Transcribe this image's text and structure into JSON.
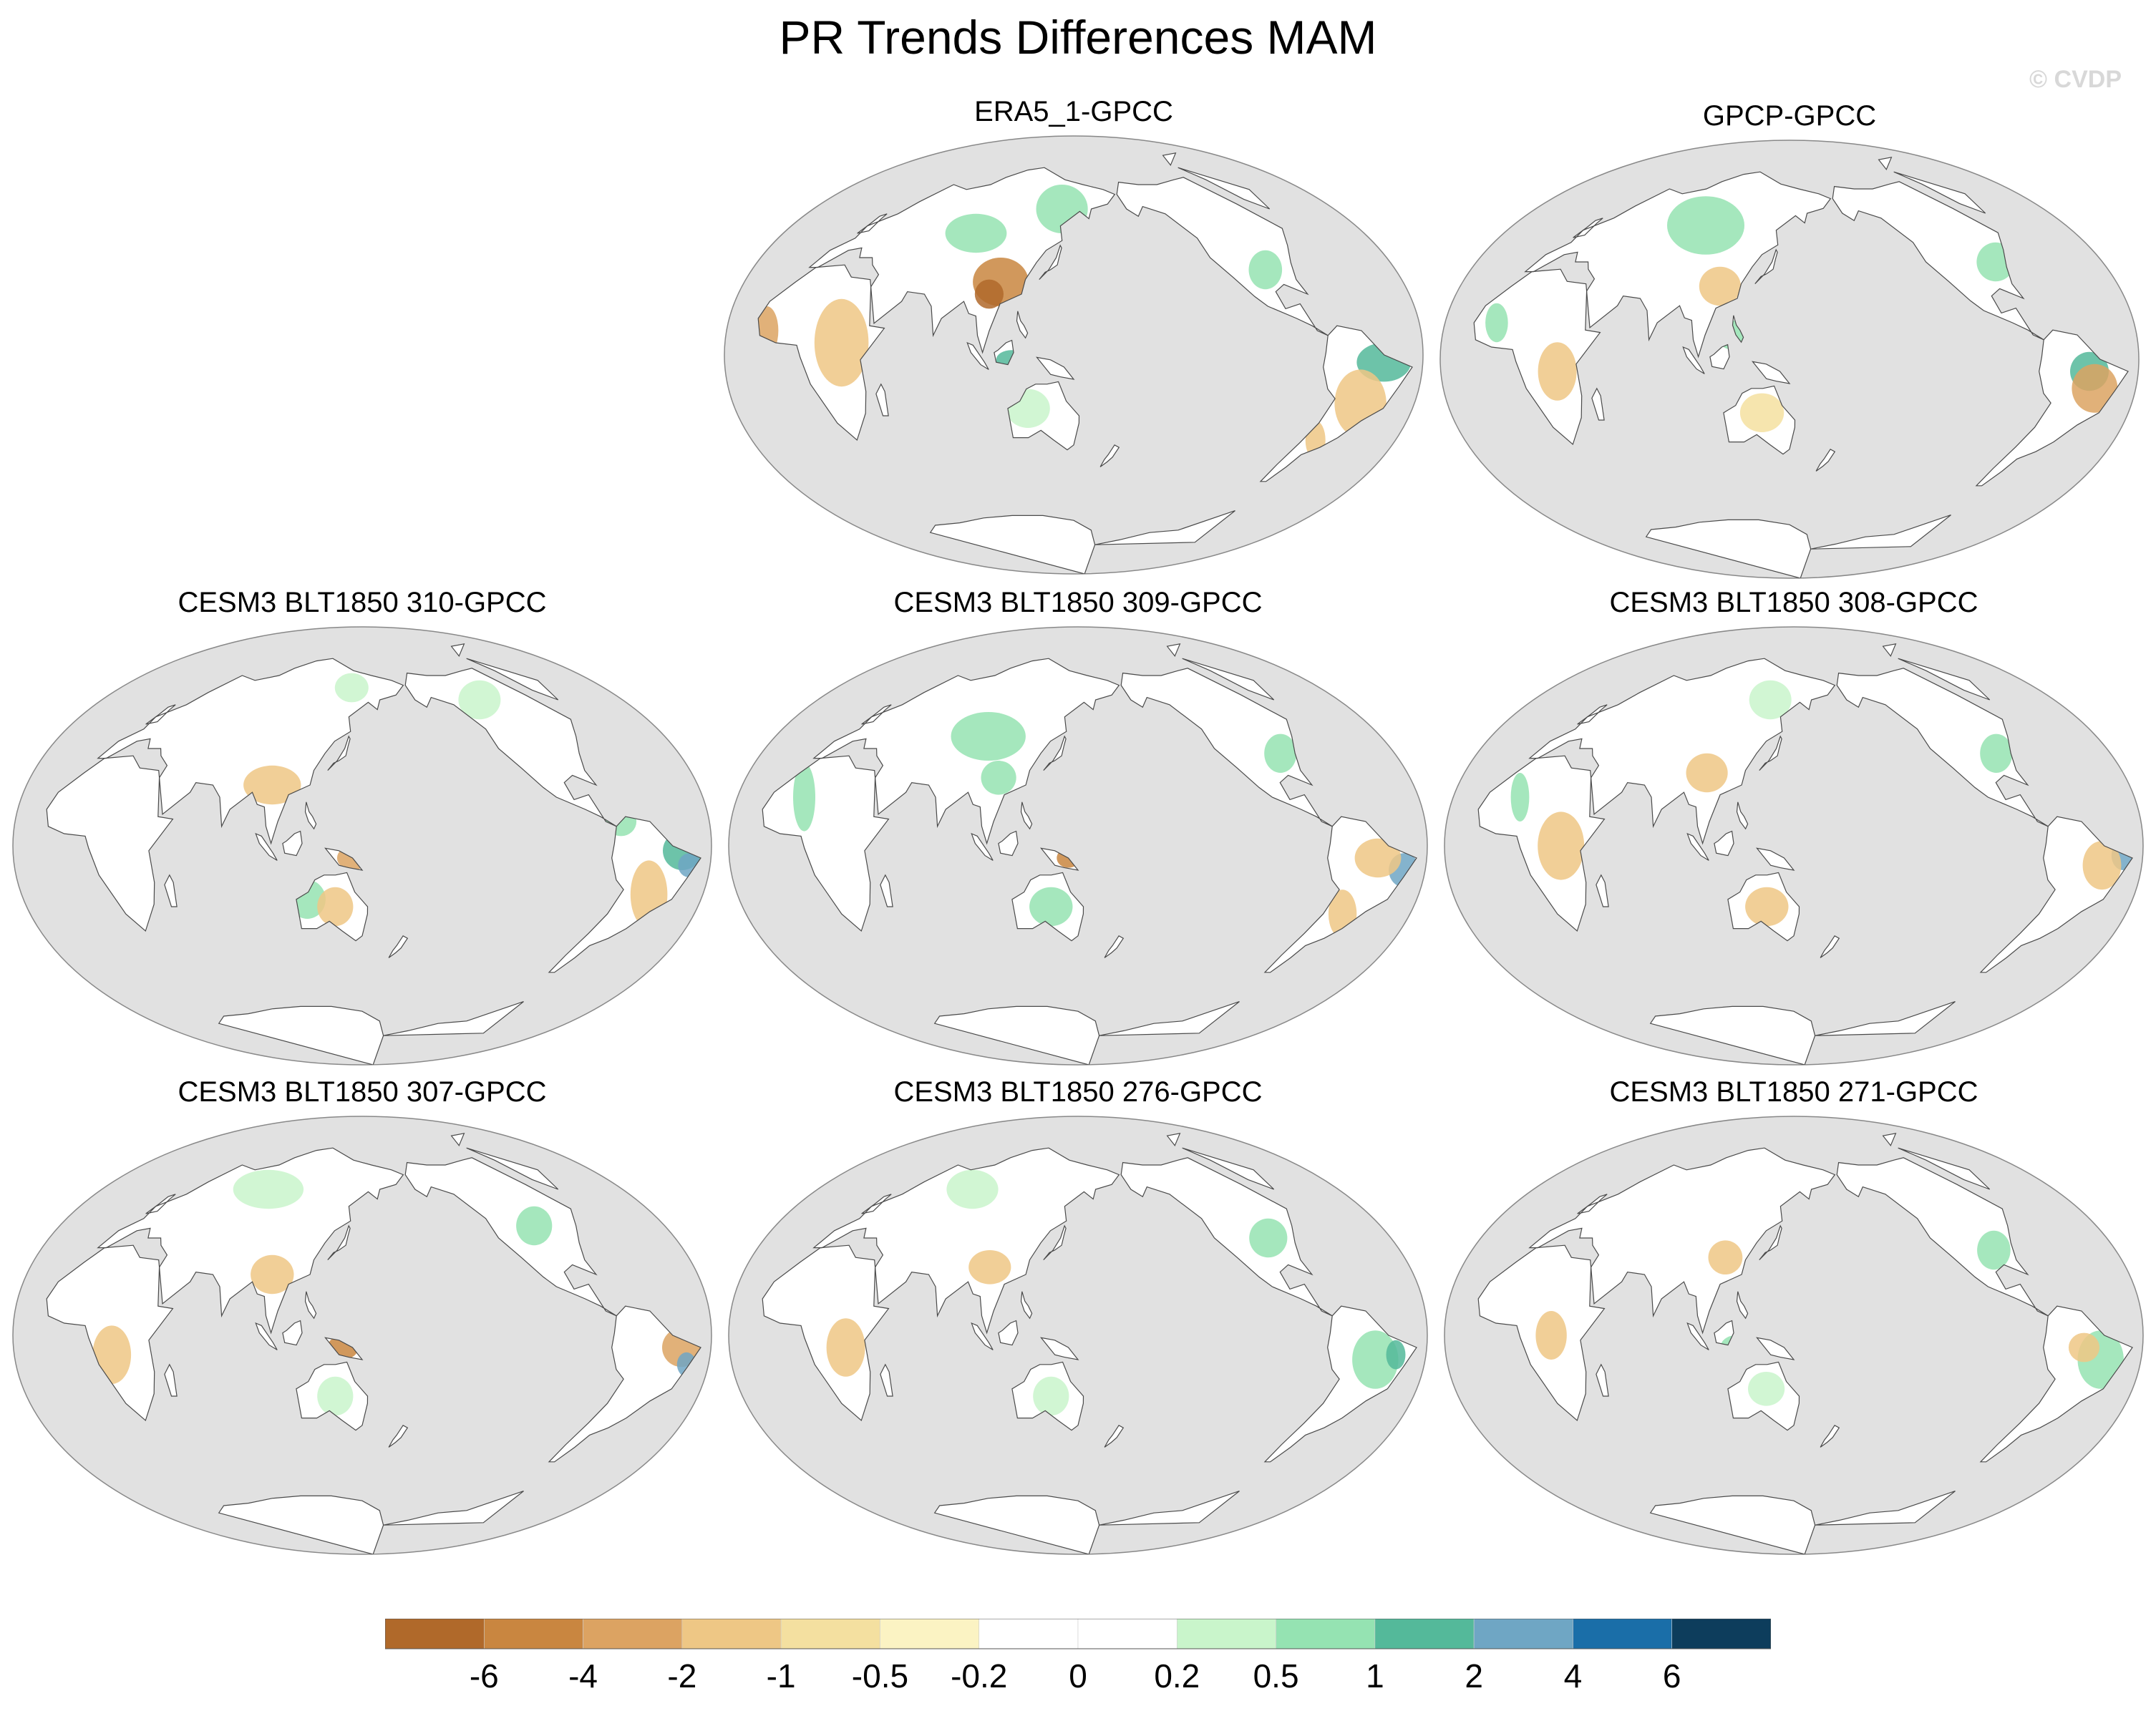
{
  "figure": {
    "title": "PR Trends Differences MAM",
    "credit": "© CVDP"
  },
  "panels": [
    {
      "title": "ERA5_1-GPCC"
    },
    {
      "title": "GPCP-GPCC"
    },
    {
      "title": "CESM3 BLT1850 310-GPCC"
    },
    {
      "title": "CESM3 BLT1850 309-GPCC"
    },
    {
      "title": "CESM3 BLT1850 308-GPCC"
    },
    {
      "title": "CESM3 BLT1850 307-GPCC"
    },
    {
      "title": "CESM3 BLT1850 276-GPCC"
    },
    {
      "title": "CESM3 BLT1850 271-GPCC"
    }
  ],
  "colorbar": {
    "labels": [
      "-6",
      "-4",
      "-2",
      "-1",
      "-0.5",
      "-0.2",
      "0",
      "0.2",
      "0.5",
      "1",
      "2",
      "4",
      "6"
    ],
    "colors": [
      "#b0692a",
      "#c98640",
      "#dca362",
      "#eec785",
      "#f4e0a0",
      "#fbf3c3",
      "#ffffff",
      "#ffffff",
      "#c9f5cb",
      "#95e3b2",
      "#54b99a",
      "#6fa6c4",
      "#1a6ea8",
      "#0d3d5c"
    ]
  },
  "map_style": {
    "ocean": "#e1e1e1",
    "land": "#ffffff",
    "coast": "#4a4a4a"
  }
}
